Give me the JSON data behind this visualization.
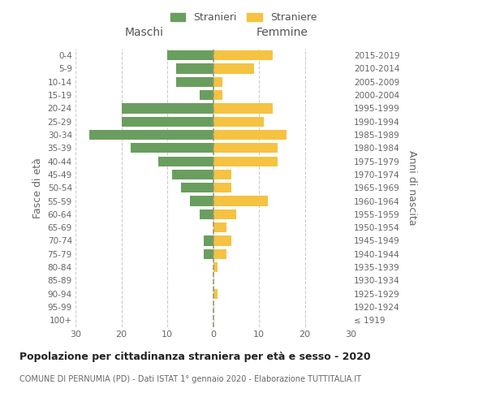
{
  "age_groups": [
    "100+",
    "95-99",
    "90-94",
    "85-89",
    "80-84",
    "75-79",
    "70-74",
    "65-69",
    "60-64",
    "55-59",
    "50-54",
    "45-49",
    "40-44",
    "35-39",
    "30-34",
    "25-29",
    "20-24",
    "15-19",
    "10-14",
    "5-9",
    "0-4"
  ],
  "birth_years": [
    "≤ 1919",
    "1920-1924",
    "1925-1929",
    "1930-1934",
    "1935-1939",
    "1940-1944",
    "1945-1949",
    "1950-1954",
    "1955-1959",
    "1960-1964",
    "1965-1969",
    "1970-1974",
    "1975-1979",
    "1980-1984",
    "1985-1989",
    "1990-1994",
    "1995-1999",
    "2000-2004",
    "2005-2009",
    "2010-2014",
    "2015-2019"
  ],
  "maschi": [
    0,
    0,
    0,
    0,
    0,
    2,
    2,
    0,
    3,
    5,
    7,
    9,
    12,
    18,
    27,
    20,
    20,
    3,
    8,
    8,
    10
  ],
  "femmine": [
    0,
    0,
    1,
    0,
    1,
    3,
    4,
    3,
    5,
    12,
    4,
    4,
    14,
    14,
    16,
    11,
    13,
    2,
    2,
    9,
    13
  ],
  "color_maschi": "#6a9e5f",
  "color_femmine": "#f5c242",
  "title": "Popolazione per cittadinanza straniera per età e sesso - 2020",
  "subtitle": "COMUNE DI PERNUMIA (PD) - Dati ISTAT 1° gennaio 2020 - Elaborazione TUTTITALIA.IT",
  "xlabel_left": "Maschi",
  "xlabel_right": "Femmine",
  "ylabel_left": "Fasce di età",
  "ylabel_right": "Anni di nascita",
  "legend_maschi": "Stranieri",
  "legend_femmine": "Straniere",
  "xlim": 30,
  "background_color": "#ffffff",
  "grid_color": "#cccccc"
}
